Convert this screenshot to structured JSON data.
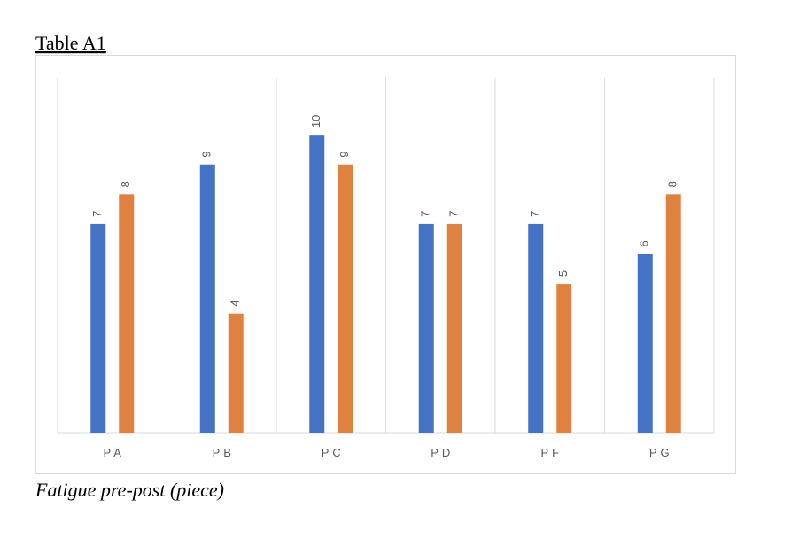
{
  "chart_data": {
    "type": "bar",
    "title": "Table A1",
    "caption": "Fatigue pre-post (piece)",
    "categories": [
      "PA",
      "PB",
      "PC",
      "PD",
      "PF",
      "PG"
    ],
    "series": [
      {
        "color": "#4472c4",
        "values": [
          7,
          9,
          10,
          7,
          7,
          6
        ]
      },
      {
        "color": "#e0823f",
        "values": [
          8,
          4,
          9,
          7,
          5,
          8
        ]
      }
    ],
    "ylim": [
      0,
      12
    ]
  }
}
